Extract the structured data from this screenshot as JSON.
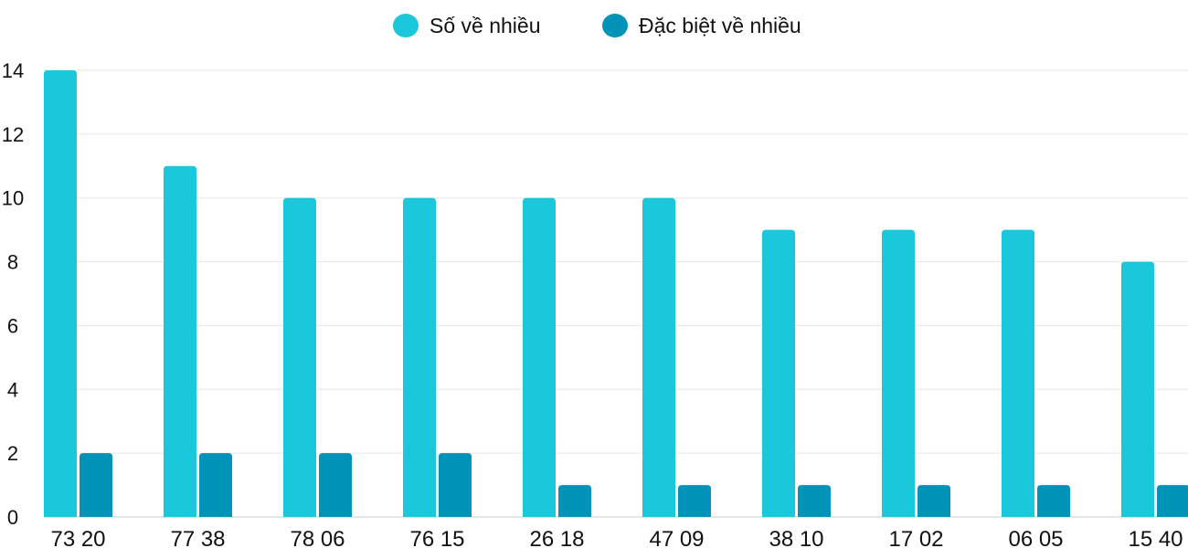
{
  "chart_data": {
    "type": "bar",
    "title": "",
    "xlabel": "",
    "ylabel": "",
    "categories": [
      "73 20",
      "77 38",
      "78 06",
      "76 15",
      "26 18",
      "47 09",
      "38 10",
      "17 02",
      "06 05",
      "15 40"
    ],
    "series": [
      {
        "name": "Số về nhiều",
        "color": "#1bc8db",
        "values": [
          14,
          11,
          10,
          10,
          10,
          10,
          9,
          9,
          9,
          8
        ]
      },
      {
        "name": "Đặc biệt về nhiều",
        "color": "#0393b8",
        "values": [
          2,
          2,
          2,
          2,
          1,
          1,
          1,
          1,
          1,
          1
        ]
      }
    ],
    "ylim": [
      0,
      14
    ],
    "yticks": [
      0,
      2,
      4,
      6,
      8,
      10,
      12,
      14
    ],
    "grid": true,
    "legend_position": "top-center"
  }
}
